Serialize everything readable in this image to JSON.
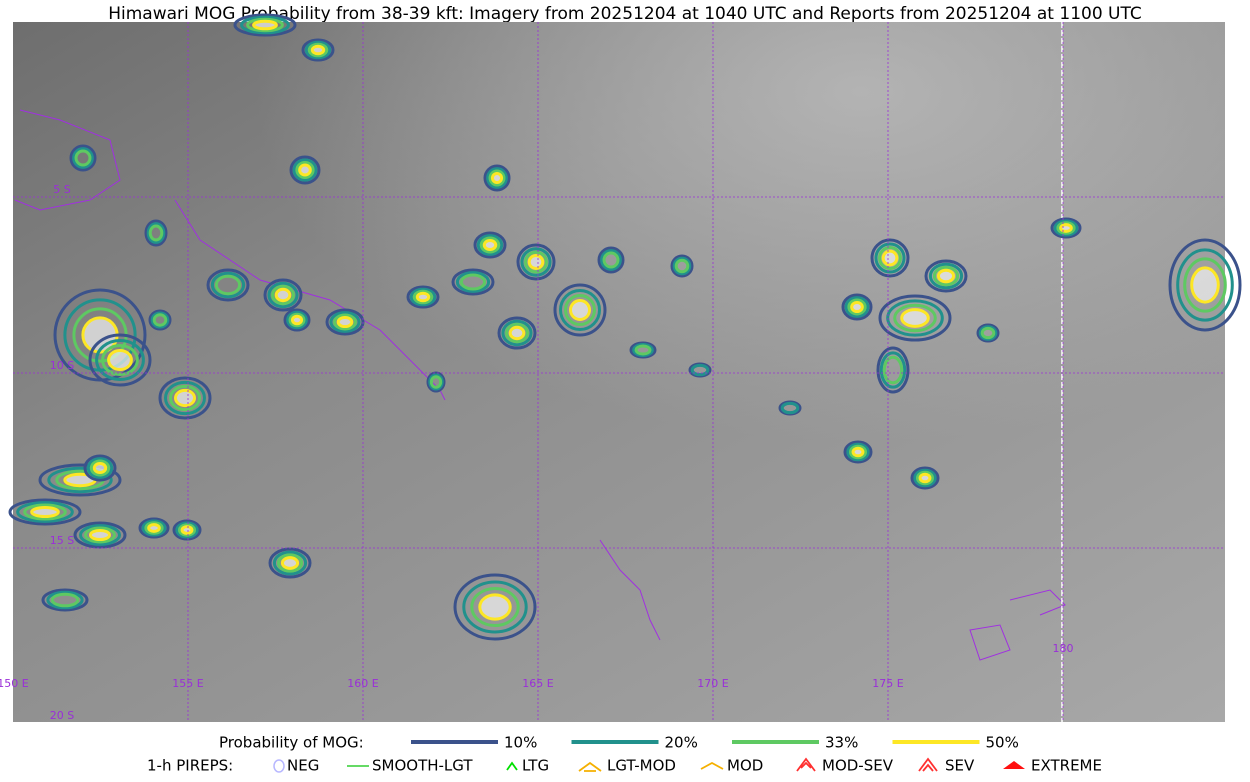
{
  "title": "Himawari MOG Probability from 38-39 kft: Imagery from 20251204 at 1040 UTC and Reports from 20251204 at 1100 UTC",
  "map": {
    "lat_labels": [
      "5 S",
      "10 S",
      "15 S",
      "20 S"
    ],
    "lon_labels": [
      "150 E",
      "155 E",
      "160 E",
      "165 E",
      "170 E",
      "175 E",
      "180"
    ]
  },
  "legend": {
    "probability": {
      "label": "Probability of MOG:",
      "items": [
        {
          "label": "10%",
          "color": "#3b528b"
        },
        {
          "label": "20%",
          "color": "#21918c"
        },
        {
          "label": "33%",
          "color": "#5ec962"
        },
        {
          "label": "50%",
          "color": "#fde725"
        }
      ]
    },
    "pireps": {
      "label": "1-h PIREPS:",
      "items": [
        {
          "label": "NEG",
          "color": "#b8b8ff"
        },
        {
          "label": "SMOOTH-LGT",
          "color": "#32cd32"
        },
        {
          "label": "LTG",
          "color": "#00e000"
        },
        {
          "label": "LGT-MOD",
          "color": "#f5b000"
        },
        {
          "label": "MOD",
          "color": "#f5b000"
        },
        {
          "label": "MOD-SEV",
          "color": "#ff3030"
        },
        {
          "label": "SEV",
          "color": "#ff3030"
        },
        {
          "label": "EXTREME",
          "color": "#ff1010"
        }
      ]
    }
  }
}
